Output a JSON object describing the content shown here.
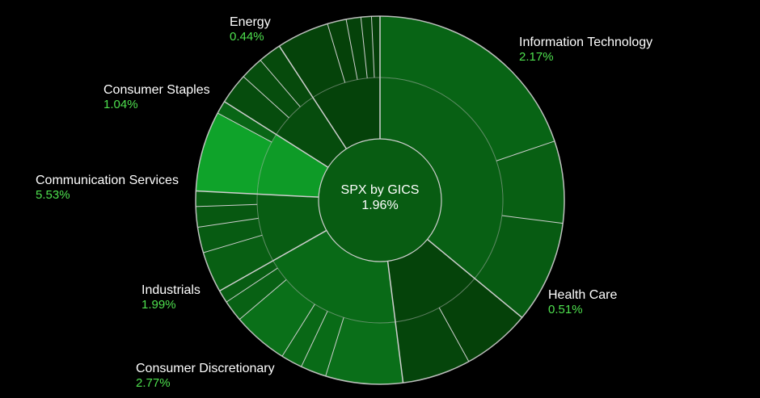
{
  "chart_data": {
    "type": "sunburst",
    "center": {
      "title": "SPX by GICS",
      "value": "1.96%"
    },
    "sectors": [
      {
        "name": "Information Technology",
        "value_label": "2.17%",
        "change": 2.17,
        "weight": 0.36,
        "children": [
          {
            "weight": 0.55,
            "change": 2.4
          },
          {
            "weight": 0.2,
            "change": 2.1
          },
          {
            "weight": 0.25,
            "change": 1.9
          }
        ]
      },
      {
        "name": "Health Care",
        "value_label": "0.51%",
        "change": 0.51,
        "weight": 0.12,
        "children": [
          {
            "weight": 0.5,
            "change": 0.4
          },
          {
            "weight": 0.5,
            "change": 0.6
          }
        ]
      },
      {
        "name": "Consumer Discretionary",
        "value_label": "2.77%",
        "change": 2.77,
        "weight": 0.188,
        "children": [
          {
            "weight": 0.36,
            "change": 3.0
          },
          {
            "weight": 0.12,
            "change": 2.8
          },
          {
            "weight": 0.1,
            "change": 2.6
          },
          {
            "weight": 0.26,
            "change": 3.1
          },
          {
            "weight": 0.1,
            "change": 2.2
          },
          {
            "weight": 0.06,
            "change": 2.0
          }
        ]
      },
      {
        "name": "Industrials",
        "value_label": "1.99%",
        "change": 1.99,
        "weight": 0.09,
        "children": [
          {
            "weight": 0.4,
            "change": 2.1
          },
          {
            "weight": 0.25,
            "change": 1.9
          },
          {
            "weight": 0.2,
            "change": 1.7
          },
          {
            "weight": 0.15,
            "change": 2.0
          }
        ]
      },
      {
        "name": "Communication Services",
        "value_label": "5.53%",
        "change": 5.53,
        "weight": 0.082,
        "children": [
          {
            "weight": 0.86,
            "change": 6.0
          },
          {
            "weight": 0.14,
            "change": 2.5
          }
        ]
      },
      {
        "name": "Consumer Staples",
        "value_label": "1.04%",
        "change": 1.04,
        "weight": 0.068,
        "children": [
          {
            "weight": 0.4,
            "change": 1.0
          },
          {
            "weight": 0.3,
            "change": 1.1
          },
          {
            "weight": 0.3,
            "change": 0.9
          }
        ]
      },
      {
        "name": "Energy",
        "value_label": "0.44%",
        "change": 0.44,
        "weight": 0.092,
        "children": [
          {
            "weight": 0.5,
            "change": 0.5
          },
          {
            "weight": 0.18,
            "change": 0.4
          },
          {
            "weight": 0.14,
            "change": 0.45
          },
          {
            "weight": 0.1,
            "change": 0.35
          },
          {
            "weight": 0.08,
            "change": 0.3
          }
        ]
      }
    ],
    "start_angle_deg": 0,
    "direction": "clockwise",
    "colors": {
      "background": "#000000",
      "divider": "#cfcfcf",
      "label_name": "#ffffff",
      "label_value": "#4ee04e",
      "scale_low": "#043a07",
      "scale_high": "#0fa32a"
    },
    "color_scale_range": [
      0,
      6
    ]
  }
}
